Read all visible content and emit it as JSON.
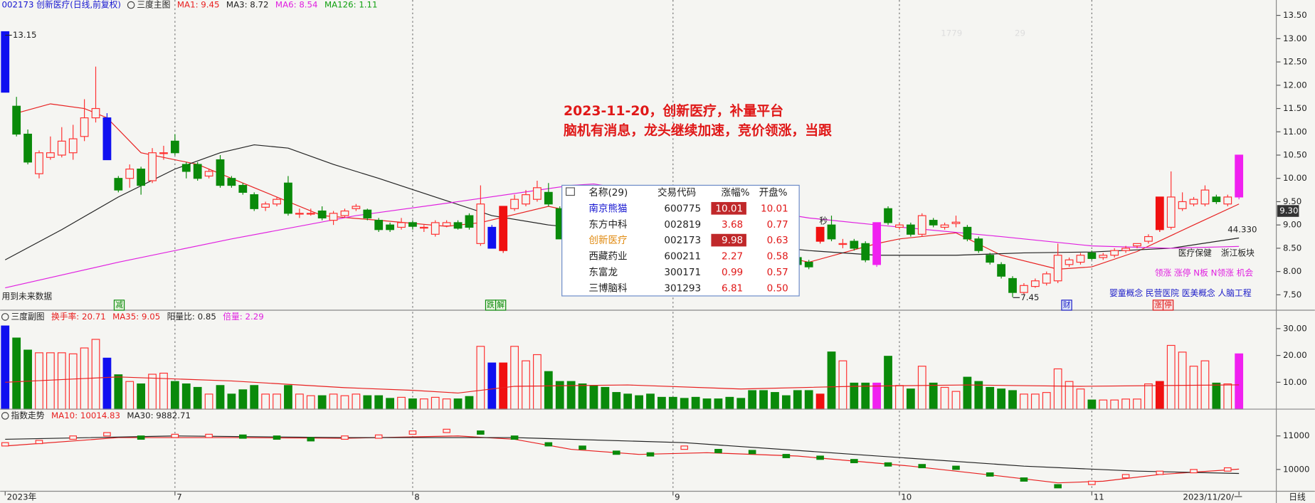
{
  "chart_data": [
    {
      "type": "candlestick",
      "subtitle": "002173 创新医疗(日线,前复权)",
      "title": "三度主图",
      "legend": [
        {
          "name": "MA1: 9.45",
          "color": "#e82020"
        },
        {
          "name": "MA3: 8.72",
          "color": "#222222"
        },
        {
          "name": "MA6: 8.54",
          "color": "#e020e0"
        },
        {
          "name": "MA126: 1.11",
          "color": "#10a010"
        }
      ],
      "ylim": [
        7.17,
        13.83
      ],
      "yticks": [
        {
          "value": 7.5,
          "label": "7.50"
        },
        {
          "value": 8,
          "label": "8.00"
        },
        {
          "value": 8.5,
          "label": "8.50"
        },
        {
          "value": 9,
          "label": "9.00"
        },
        {
          "value": 9.5,
          "label": "9.50"
        },
        {
          "value": 10,
          "label": "10.00"
        },
        {
          "value": 10.5,
          "label": "10.50"
        },
        {
          "value": 11,
          "label": "11.00"
        },
        {
          "value": 11.5,
          "label": "11.50"
        },
        {
          "value": 12,
          "label": "12.00"
        },
        {
          "value": 12.5,
          "label": "12.50"
        },
        {
          "value": 13,
          "label": "13.00"
        },
        {
          "value": 13.5,
          "label": "13.50"
        }
      ],
      "price_marker": {
        "value": 9.3,
        "label": "9.30"
      },
      "up_color": "#ff3030",
      "down_color": "#0a8a0a",
      "candles": [
        [
          13.15,
          13.15,
          11.85,
          11.85
        ],
        [
          11.55,
          11.75,
          10.9,
          10.95
        ],
        [
          10.95,
          11.05,
          10.3,
          10.35
        ],
        [
          10.1,
          10.6,
          10.0,
          10.55
        ],
        [
          10.45,
          10.9,
          10.4,
          10.55
        ],
        [
          10.5,
          11.1,
          10.45,
          10.8
        ],
        [
          10.55,
          11.15,
          10.4,
          10.85
        ],
        [
          10.9,
          11.7,
          10.8,
          11.3
        ],
        [
          11.3,
          12.4,
          11.2,
          11.5
        ],
        [
          11.3,
          11.4,
          10.4,
          10.4
        ],
        [
          10.0,
          10.05,
          9.7,
          9.75
        ],
        [
          10.0,
          10.3,
          9.8,
          10.2
        ],
        [
          10.2,
          10.25,
          9.65,
          9.85
        ],
        [
          9.95,
          10.65,
          9.9,
          10.55
        ],
        [
          10.55,
          10.7,
          10.4,
          10.55
        ],
        [
          10.8,
          10.95,
          10.5,
          10.55
        ],
        [
          10.3,
          10.35,
          10.0,
          10.15
        ],
        [
          10.3,
          10.35,
          9.95,
          10.0
        ],
        [
          10.05,
          10.2,
          10.0,
          10.15
        ],
        [
          10.4,
          10.5,
          9.8,
          9.85
        ],
        [
          10.0,
          10.05,
          9.8,
          9.85
        ],
        [
          9.85,
          9.9,
          9.65,
          9.7
        ],
        [
          9.65,
          9.7,
          9.3,
          9.35
        ],
        [
          9.38,
          9.5,
          9.3,
          9.45
        ],
        [
          9.45,
          9.6,
          9.4,
          9.55
        ],
        [
          9.9,
          10.05,
          9.2,
          9.25
        ],
        [
          9.25,
          9.35,
          9.15,
          9.25
        ],
        [
          9.25,
          9.35,
          9.2,
          9.25
        ],
        [
          9.3,
          9.4,
          9.1,
          9.15
        ],
        [
          9.1,
          9.3,
          9.0,
          9.25
        ],
        [
          9.2,
          9.35,
          9.15,
          9.3
        ],
        [
          9.35,
          9.45,
          9.3,
          9.4
        ],
        [
          9.32,
          9.35,
          9.1,
          9.15
        ],
        [
          9.1,
          9.15,
          8.85,
          8.9
        ],
        [
          9.0,
          9.05,
          8.85,
          8.9
        ],
        [
          8.95,
          9.15,
          8.9,
          9.05
        ],
        [
          9.05,
          9.1,
          8.9,
          8.97
        ],
        [
          8.95,
          9.0,
          8.85,
          8.95
        ],
        [
          8.8,
          9.1,
          8.75,
          9.05
        ],
        [
          8.98,
          9.1,
          8.95,
          9.05
        ],
        [
          9.05,
          9.1,
          8.9,
          8.93
        ],
        [
          9.2,
          9.25,
          8.9,
          8.95
        ],
        [
          8.6,
          9.85,
          8.55,
          9.45
        ],
        [
          8.95,
          9.0,
          8.5,
          8.5
        ],
        [
          8.45,
          9.4,
          8.4,
          9.4
        ],
        [
          9.35,
          9.65,
          9.3,
          9.55
        ],
        [
          9.45,
          9.75,
          9.4,
          9.65
        ],
        [
          9.55,
          9.95,
          9.5,
          9.8
        ],
        [
          9.7,
          9.9,
          9.4,
          9.45
        ],
        [
          9.35,
          9.4,
          8.7,
          8.7
        ],
        null,
        null,
        null,
        null,
        null,
        null,
        null,
        null,
        null,
        null,
        null,
        null,
        null,
        null,
        null,
        null,
        null,
        null,
        null,
        null,
        [
          8.3,
          8.35,
          8.1,
          8.15
        ],
        [
          8.2,
          8.25,
          8.05,
          8.1
        ],
        [
          8.65,
          8.95,
          8.6,
          8.95
        ],
        [
          9.0,
          9.2,
          8.65,
          8.7
        ],
        [
          8.6,
          8.7,
          8.5,
          8.6
        ],
        [
          8.65,
          8.7,
          8.45,
          8.5
        ],
        [
          8.6,
          8.65,
          8.2,
          8.25
        ],
        [
          8.15,
          9.05,
          8.1,
          9.05
        ],
        [
          9.35,
          9.4,
          9.0,
          9.05
        ],
        [
          8.95,
          9.05,
          8.9,
          9.0
        ],
        [
          9.0,
          9.05,
          8.75,
          8.8
        ],
        [
          8.8,
          9.25,
          8.75,
          9.2
        ],
        [
          9.1,
          9.15,
          8.95,
          9.0
        ],
        [
          8.95,
          9.05,
          8.9,
          9.0
        ],
        [
          9.03,
          9.2,
          8.95,
          9.06
        ],
        [
          8.95,
          9.0,
          8.65,
          8.7
        ],
        [
          8.7,
          8.75,
          8.4,
          8.45
        ],
        [
          8.35,
          8.4,
          8.15,
          8.2
        ],
        [
          8.15,
          8.2,
          7.85,
          7.9
        ],
        [
          7.85,
          7.9,
          7.45,
          7.55
        ],
        [
          7.55,
          7.75,
          7.5,
          7.7
        ],
        [
          7.68,
          7.85,
          7.65,
          7.8
        ],
        [
          7.75,
          8.0,
          7.7,
          7.95
        ],
        [
          7.8,
          8.6,
          7.75,
          8.35
        ],
        [
          8.15,
          8.3,
          8.1,
          8.25
        ],
        [
          8.2,
          8.4,
          8.15,
          8.35
        ],
        [
          8.4,
          8.45,
          8.25,
          8.28
        ],
        [
          8.3,
          8.4,
          8.25,
          8.35
        ],
        [
          8.35,
          8.5,
          8.3,
          8.45
        ],
        [
          8.45,
          8.55,
          8.4,
          8.5
        ],
        [
          8.55,
          8.6,
          8.5,
          8.6
        ],
        [
          8.65,
          8.8,
          8.6,
          8.75
        ],
        [
          8.9,
          9.6,
          8.85,
          9.6
        ],
        [
          8.95,
          10.15,
          8.9,
          9.6
        ],
        [
          9.35,
          9.7,
          9.3,
          9.5
        ],
        [
          9.45,
          9.6,
          9.4,
          9.55
        ],
        [
          9.45,
          9.85,
          9.4,
          9.75
        ],
        [
          9.6,
          9.65,
          9.45,
          9.5
        ],
        [
          9.45,
          9.65,
          9.4,
          9.6
        ],
        [
          9.6,
          10.5,
          9.55,
          10.5
        ]
      ],
      "special_colors": [
        {
          "index": 0,
          "color": "#1010f0"
        },
        {
          "index": 9,
          "color": "#1010f0"
        },
        {
          "index": 43,
          "color": "#1010f0"
        },
        {
          "index": 44,
          "color": "#f01010"
        },
        {
          "index": 72,
          "color": "#f01010"
        },
        {
          "index": 77,
          "color": "#f020f0"
        },
        {
          "index": 102,
          "color": "#f01010"
        },
        {
          "index": 109,
          "color": "#f020f0"
        }
      ],
      "lines": [
        {
          "color": "#e82020",
          "x": [
            1,
            4,
            7,
            9,
            12,
            17,
            22,
            28,
            33,
            39,
            42,
            48,
            71,
            77,
            79,
            84,
            88,
            93,
            96,
            100,
            105,
            109
          ],
          "values": [
            11.4,
            11.6,
            11.5,
            11.3,
            10.55,
            10.3,
            9.8,
            9.2,
            9.1,
            8.97,
            9.05,
            9.4,
            8.2,
            8.6,
            8.7,
            8.83,
            8.35,
            8.05,
            8.1,
            8.43,
            9.0,
            9.45
          ]
        },
        {
          "color": "#222222",
          "x": [
            0,
            5,
            10,
            15,
            19,
            22,
            25,
            29,
            33,
            38,
            43,
            48,
            71,
            77,
            84,
            90,
            96,
            103,
            109
          ],
          "values": [
            8.25,
            8.9,
            9.6,
            10.2,
            10.55,
            10.72,
            10.65,
            10.3,
            10.0,
            9.6,
            9.2,
            9.0,
            8.45,
            8.35,
            8.35,
            8.4,
            8.42,
            8.5,
            8.72
          ]
        },
        {
          "color": "#e020e0",
          "x": [
            0,
            10,
            20,
            31,
            40,
            50,
            52,
            71,
            77,
            88,
            96,
            103,
            109
          ],
          "values": [
            7.65,
            8.2,
            8.7,
            9.2,
            9.5,
            9.85,
            9.88,
            9.15,
            9.0,
            8.75,
            8.55,
            8.5,
            8.54
          ]
        }
      ],
      "annotations": [
        "2023-11-20，创新医疗，补量平台",
        "脑机有消息，龙头继续加速，竞价领涨，当跟"
      ],
      "high_label": 13.15,
      "low_label": 7.45,
      "notes": [
        "用到未来数据",
        "秒",
        "医疗保健",
        "浙江板块",
        "44.330",
        "领涨 涨停 N板 N领涨 机会",
        "婴童概念 民营医院 医美概念 人脑工程",
        "1779",
        "29"
      ],
      "markers": [
        "减",
        "跌",
        "解",
        "财",
        "涨",
        "停"
      ]
    },
    {
      "type": "volume",
      "title": "三度副图",
      "legend": [
        {
          "name": "换手率: 20.71",
          "color": "#e82020"
        },
        {
          "name": "MA35: 9.05",
          "color": "#e82020"
        },
        {
          "name": "阳量比: 0.85",
          "color": "#222222"
        },
        {
          "name": "倍量: 2.29",
          "color": "#e020e0"
        }
      ],
      "ylim": [
        0,
        36.25
      ],
      "yticks": [
        {
          "value": 10,
          "label": "10.00"
        },
        {
          "value": 20,
          "label": "20.00"
        },
        {
          "value": 30,
          "label": "30.00"
        }
      ],
      "values": [
        31,
        26.5,
        22,
        21,
        21,
        21,
        20.6,
        22.8,
        26,
        19,
        12.8,
        10.3,
        9.4,
        13,
        13.4,
        10.3,
        9.4,
        8.1,
        5.6,
        8.8,
        5.6,
        7.2,
        8.8,
        5.6,
        5.6,
        8.8,
        5.6,
        5,
        5,
        5.6,
        5,
        5.6,
        5,
        5,
        4,
        4.4,
        3.8,
        3.8,
        4.4,
        3.8,
        3.8,
        4.7,
        23.4,
        17.2,
        17.2,
        23.4,
        18,
        20.3,
        14,
        10.3,
        10.3,
        9.4,
        8.8,
        8.1,
        6.2,
        5.6,
        5,
        5.6,
        4.4,
        4.4,
        4,
        4.4,
        3.8,
        3.8,
        4.4,
        4,
        6.9,
        6.9,
        6.2,
        5,
        6.9,
        6.9,
        5.6,
        21.3,
        18,
        9.7,
        9.7,
        9.7,
        19.7,
        8.8,
        7.5,
        16,
        9.7,
        8.1,
        6.6,
        11.9,
        10.3,
        8.1,
        7.5,
        6.9,
        5.6,
        5.6,
        6.2,
        15,
        10.3,
        7.5,
        3.4,
        3.4,
        3.4,
        3.75,
        3.75,
        9.4,
        10.3,
        23.75,
        21.25,
        16,
        18,
        9.7,
        9.4,
        20.6
      ],
      "lines": [
        {
          "color": "#e82020",
          "x": [
            0,
            10,
            20,
            30,
            36,
            40,
            45,
            55,
            65,
            75,
            85,
            95,
            109
          ],
          "values": [
            10,
            12,
            10.5,
            8,
            7,
            6,
            8.5,
            9,
            7.5,
            8.5,
            9,
            8.5,
            9.05
          ]
        }
      ]
    },
    {
      "type": "index",
      "title": "指数走势",
      "legend": [
        {
          "name": "MA10: 10014.83",
          "color": "#e82020"
        },
        {
          "name": "MA30: 9882.71",
          "color": "#222222"
        }
      ],
      "ylim": [
        9375,
        11750
      ],
      "yticks": [
        10000,
        11000
      ],
      "x": [
        0,
        3,
        6,
        9,
        12,
        15,
        18,
        21,
        24,
        27,
        30,
        33,
        36,
        39,
        42,
        45,
        48,
        51,
        54,
        57,
        60,
        63,
        66,
        69,
        72,
        75,
        78,
        81,
        84,
        87,
        90,
        93,
        96,
        99,
        102,
        105,
        108
      ],
      "values": [
        10750,
        10820,
        10950,
        11050,
        10950,
        11000,
        11000,
        10980,
        10950,
        10900,
        10950,
        10980,
        11100,
        11150,
        11100,
        10950,
        10750,
        10650,
        10500,
        10450,
        10650,
        10550,
        10520,
        10400,
        10350,
        10250,
        10150,
        10100,
        10050,
        9850,
        9700,
        9500,
        9600,
        9800,
        9900,
        9950,
        10000
      ],
      "lines": [
        {
          "color": "#e82020",
          "x": [
            0,
            10,
            20,
            30,
            40,
            45,
            50,
            56,
            62,
            70,
            80,
            88,
            93,
            97,
            102,
            109
          ],
          "values": [
            10700,
            10950,
            10950,
            10930,
            11000,
            10900,
            10600,
            10450,
            10500,
            10400,
            10100,
            9800,
            9600,
            9650,
            9850,
            10010
          ]
        },
        {
          "color": "#222222",
          "x": [
            0,
            15,
            30,
            45,
            60,
            75,
            90,
            100,
            109
          ],
          "values": [
            10900,
            11000,
            10950,
            10950,
            10800,
            10450,
            10100,
            9950,
            9880
          ]
        }
      ],
      "xticks": [
        {
          "value": 0,
          "label": "2023年"
        },
        {
          "value": 15,
          "label": "7"
        },
        {
          "value": 36,
          "label": "8"
        },
        {
          "value": 59,
          "label": "9"
        },
        {
          "value": 79,
          "label": "10"
        },
        {
          "value": 96,
          "label": "11"
        },
        {
          "value": 109,
          "label": "2023/11/20/一"
        }
      ]
    }
  ],
  "popup": {
    "header": [
      "名称(29)",
      "交易代码",
      "涨幅%",
      "开盘%"
    ],
    "rows": [
      [
        "南京熊猫",
        "600775",
        "10.01",
        "10.01"
      ],
      [
        "东方中科",
        "002819",
        "3.68",
        "0.77"
      ],
      [
        "创新医疗",
        "002173",
        "9.98",
        "0.63"
      ],
      [
        "西藏药业",
        "600211",
        "2.27",
        "0.58"
      ],
      [
        "东富龙",
        "300171",
        "0.99",
        "0.57"
      ],
      [
        "三博脑科",
        "301293",
        "6.81",
        "0.50"
      ]
    ]
  },
  "timeframe": "日线"
}
